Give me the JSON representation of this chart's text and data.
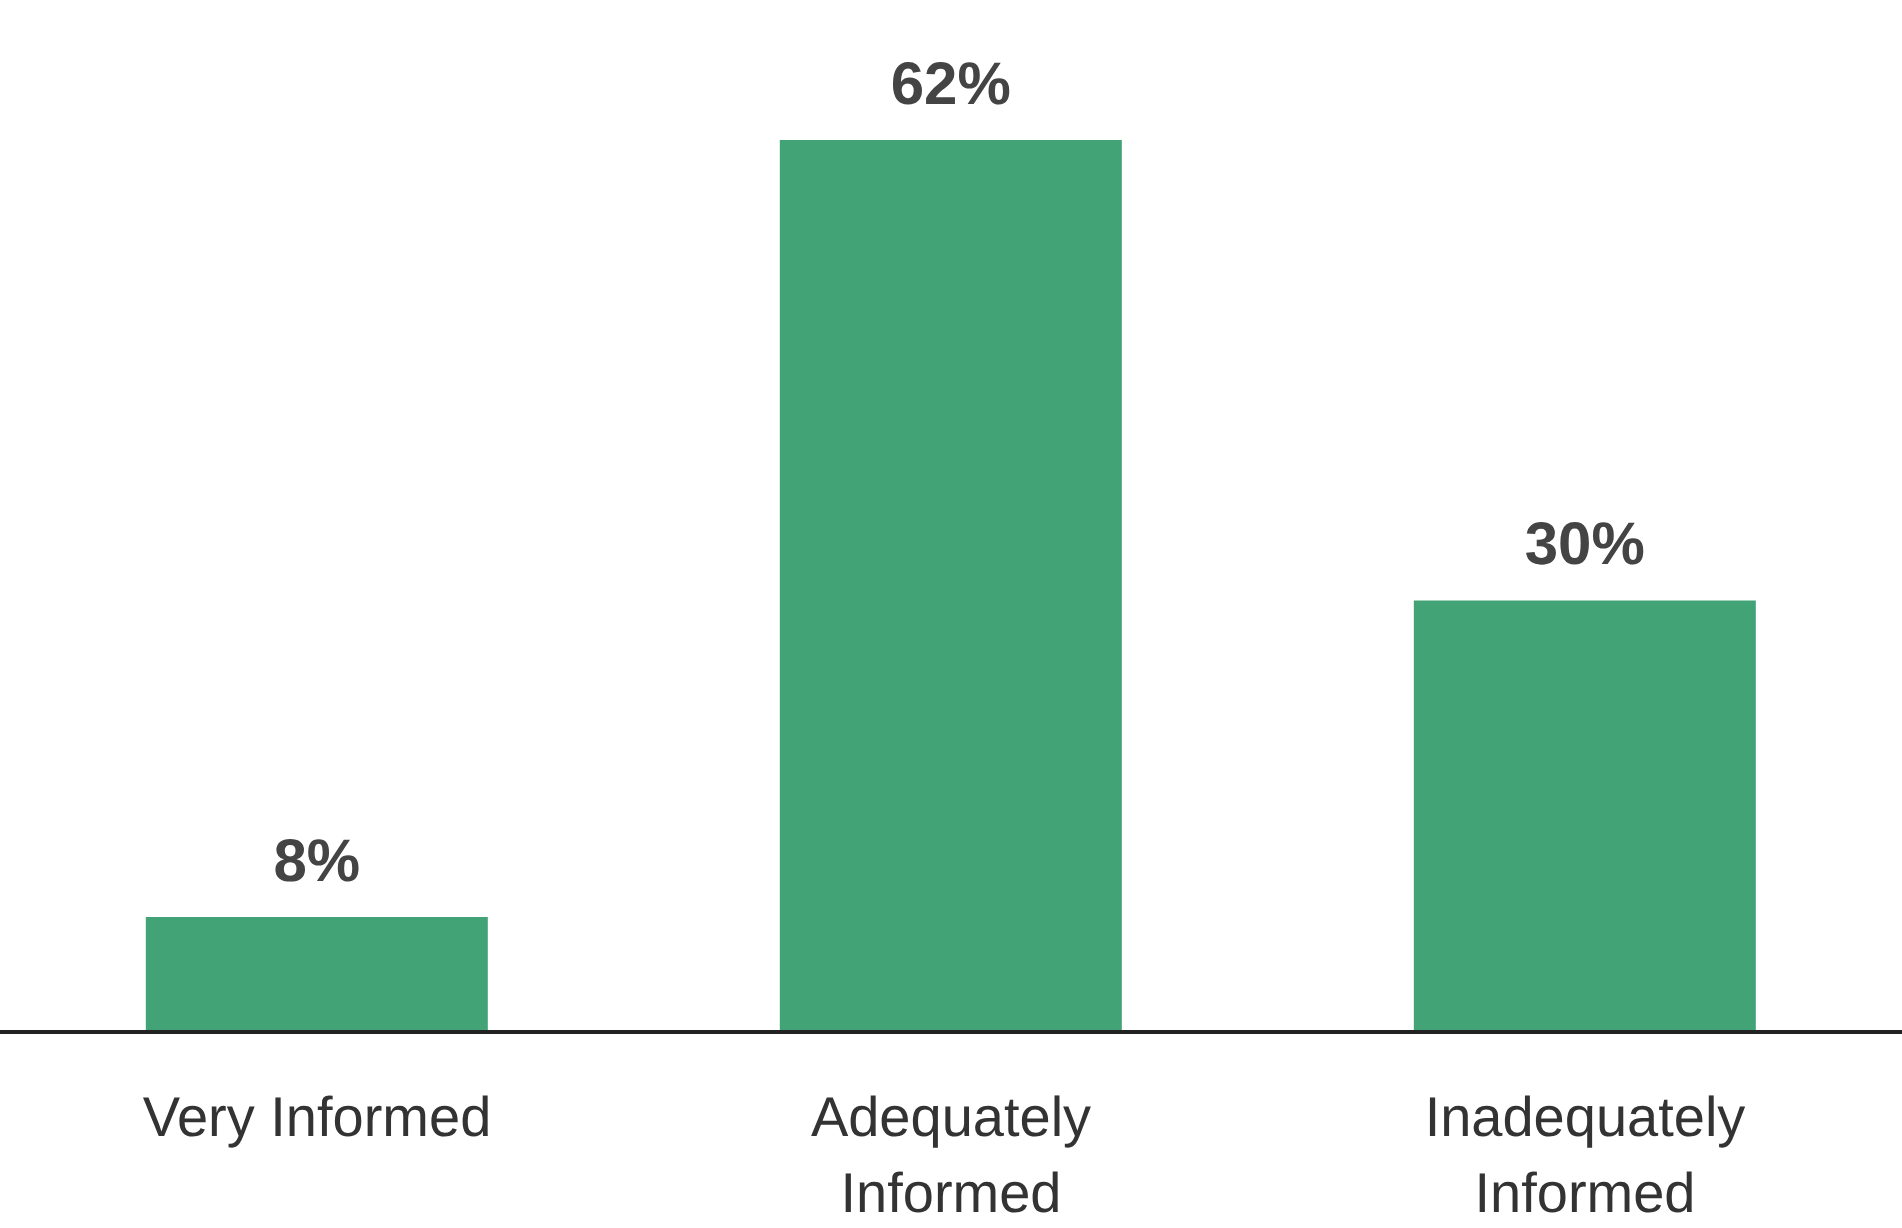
{
  "chart_data": {
    "type": "bar",
    "categories": [
      "Very Informed",
      "Adequately Informed",
      "Inadequately Informed"
    ],
    "values": [
      8,
      62,
      30
    ],
    "value_labels": [
      "8%",
      "62%",
      "30%"
    ],
    "color": "#42a476",
    "grid": false,
    "legend": false
  }
}
